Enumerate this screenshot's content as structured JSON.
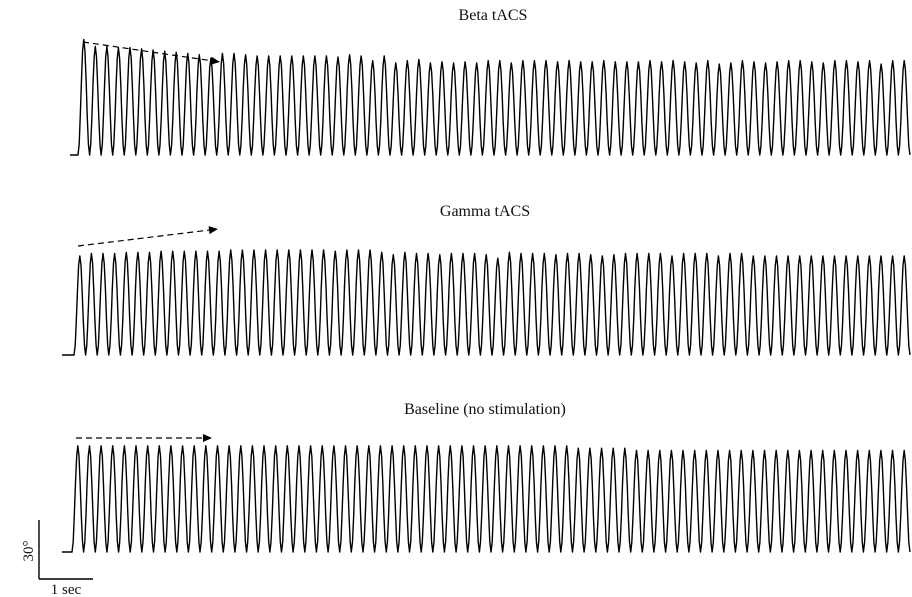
{
  "chart_data": {
    "type": "line",
    "panels": [
      {
        "title": "Beta tACS",
        "trend_direction": "decreasing",
        "peaks": [
          98,
          92,
          92,
          91,
          91,
          90,
          89,
          88,
          87,
          86,
          85,
          82,
          86,
          86,
          85,
          84,
          84,
          84,
          84,
          84,
          84,
          84,
          83,
          85,
          84,
          80,
          84,
          78,
          80,
          81,
          78,
          79,
          78,
          79,
          78,
          80,
          80,
          78,
          80,
          80,
          80,
          79,
          80,
          79,
          79,
          80,
          79,
          79,
          79,
          80,
          79,
          80,
          79,
          78,
          80,
          77,
          78,
          80,
          79,
          78,
          79,
          80,
          80,
          79,
          78,
          80,
          80,
          79,
          80,
          77,
          80,
          80
        ]
      },
      {
        "title": "Gamma tACS",
        "trend_direction": "increasing",
        "peaks": [
          84,
          86,
          86,
          86,
          87,
          87,
          87,
          88,
          88,
          88,
          88,
          88,
          88,
          89,
          89,
          89,
          89,
          89,
          89,
          89,
          89,
          89,
          88,
          89,
          89,
          89,
          87,
          85,
          87,
          86,
          86,
          85,
          86,
          86,
          86,
          85,
          82,
          87,
          86,
          86,
          86,
          85,
          86,
          86,
          85,
          84,
          85,
          86,
          86,
          86,
          86,
          84,
          86,
          86,
          86,
          84,
          86,
          86,
          84,
          84,
          84,
          84,
          84,
          84,
          84,
          84,
          84,
          84,
          84,
          84,
          84,
          84
        ]
      },
      {
        "title": "Baseline (no stimulation)",
        "trend_direction": "flat",
        "peaks": [
          90,
          90,
          90,
          90,
          90,
          90,
          90,
          90,
          90,
          90,
          90,
          90,
          90,
          90,
          90,
          90,
          90,
          90,
          90,
          90,
          90,
          90,
          90,
          90,
          90,
          90,
          90,
          90,
          90,
          90,
          90,
          90,
          90,
          90,
          90,
          90,
          90,
          90,
          90,
          90,
          90,
          90,
          90,
          88,
          88,
          88,
          88,
          88,
          86,
          86,
          86,
          86,
          86,
          86,
          86,
          86,
          86,
          86,
          86,
          86,
          86,
          86,
          86,
          86,
          86,
          86,
          86,
          86,
          86,
          86,
          86,
          86
        ]
      }
    ],
    "scale_bar": {
      "y_label": "30°",
      "x_label": "1 sec"
    }
  }
}
